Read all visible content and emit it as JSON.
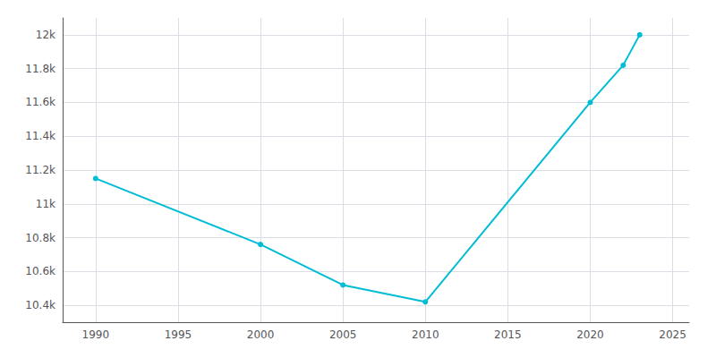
{
  "chart_data": {
    "type": "line",
    "x": [
      1990,
      2000,
      2005,
      2010,
      2020,
      2022,
      2023
    ],
    "values": [
      11150,
      10760,
      10520,
      10420,
      11600,
      11820,
      12000
    ],
    "color": "#00bcd4",
    "marker": "circle",
    "xlim": [
      1988,
      2026
    ],
    "xticks": [
      1990,
      1995,
      2000,
      2005,
      2010,
      2015,
      2020,
      2025
    ],
    "ylim": [
      10300,
      12100
    ],
    "yticks": [
      {
        "value": 10400,
        "label": "10.4k"
      },
      {
        "value": 10600,
        "label": "10.6k"
      },
      {
        "value": 10800,
        "label": "10.8k"
      },
      {
        "value": 11000,
        "label": "11k"
      },
      {
        "value": 11200,
        "label": "11.2k"
      },
      {
        "value": 11400,
        "label": "11.4k"
      },
      {
        "value": 11600,
        "label": "11.6k"
      },
      {
        "value": 11800,
        "label": "11.8k"
      },
      {
        "value": 12000,
        "label": "12k"
      }
    ],
    "grid": true
  }
}
